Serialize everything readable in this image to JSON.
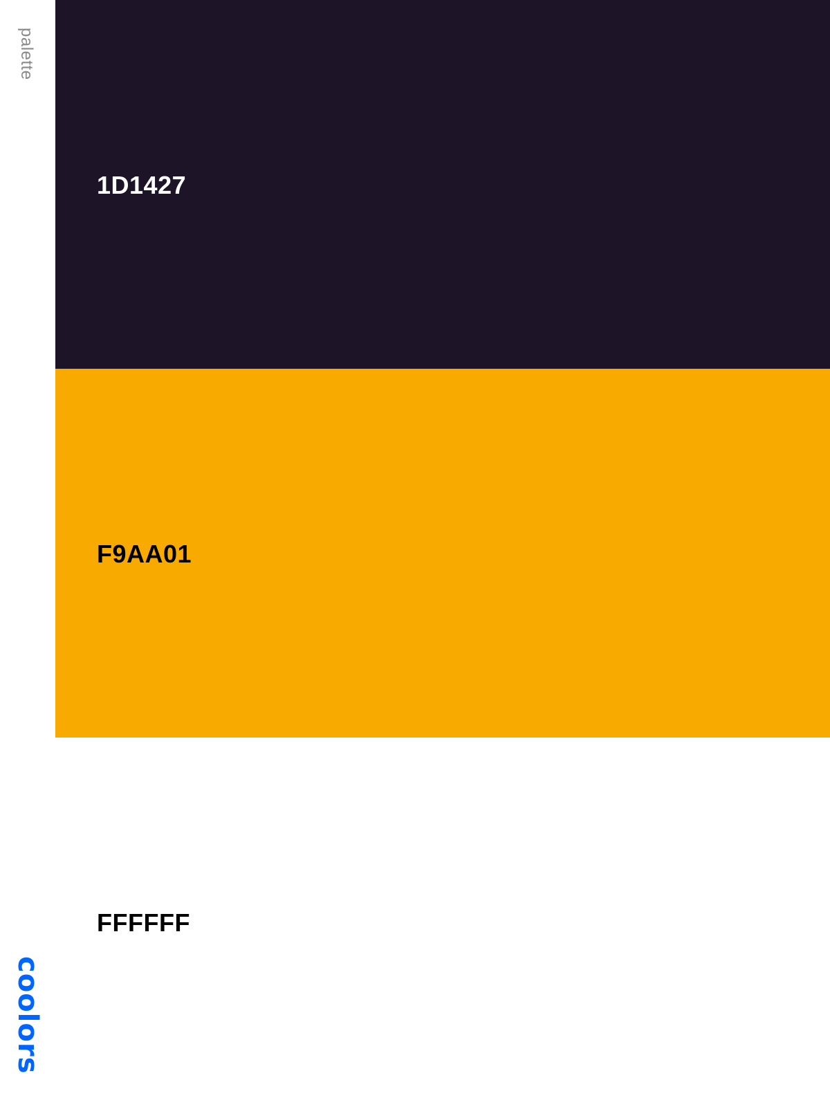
{
  "sidebar": {
    "label": "palette",
    "brand": "coolors",
    "brand_color": "#0066FF"
  },
  "swatches": [
    {
      "code": "1D1427",
      "color": "#1D1427",
      "text_color": "#FFFFFF"
    },
    {
      "code": "F9AA01",
      "color": "#F9AA01",
      "text_color": "#000000"
    },
    {
      "code": "FFFFFF",
      "color": "#FFFFFF",
      "text_color": "#000000"
    }
  ]
}
